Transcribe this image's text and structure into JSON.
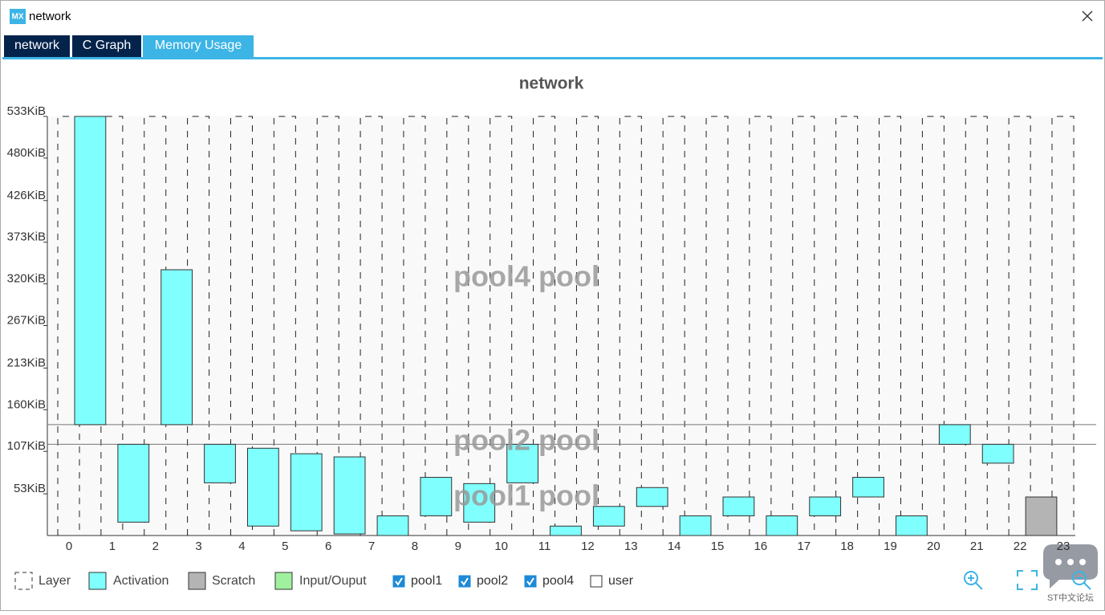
{
  "window": {
    "title": "network",
    "icon": "MX",
    "tabs": [
      "network",
      "C Graph",
      "Memory Usage"
    ],
    "active_tab": 2
  },
  "chart_data": {
    "type": "floating-bar",
    "title": "network",
    "ylim": [
      0,
      533
    ],
    "yticks": [
      {
        "value": 53,
        "label": "53KiB"
      },
      {
        "value": 107,
        "label": "107KiB"
      },
      {
        "value": 160,
        "label": "160KiB"
      },
      {
        "value": 213,
        "label": "213KiB"
      },
      {
        "value": 267,
        "label": "267KiB"
      },
      {
        "value": 320,
        "label": "320KiB"
      },
      {
        "value": 373,
        "label": "373KiB"
      },
      {
        "value": 426,
        "label": "426KiB"
      },
      {
        "value": 480,
        "label": "480KiB"
      },
      {
        "value": 533,
        "label": "533KiB"
      }
    ],
    "xlim": [
      0,
      23
    ],
    "xticks": [
      0,
      1,
      2,
      3,
      4,
      5,
      6,
      7,
      8,
      9,
      10,
      11,
      12,
      13,
      14,
      15,
      16,
      17,
      18,
      19,
      20,
      21,
      22,
      23
    ],
    "layer_legend": "Layer",
    "series": [
      {
        "name": "Activation",
        "color": "#80ffff",
        "layers": [
          0,
          1,
          2,
          3,
          4,
          5,
          6,
          7,
          8,
          9,
          10,
          11,
          12,
          13,
          14,
          15,
          16,
          17,
          18,
          19,
          20,
          21
        ],
        "low": [
          141,
          17,
          141,
          67,
          12,
          6,
          2,
          0,
          25,
          17,
          67,
          0,
          12,
          37,
          0,
          25,
          0,
          25,
          49,
          0,
          116,
          92
        ],
        "high": [
          533,
          116,
          338,
          116,
          111,
          104,
          100,
          25,
          74,
          66,
          116,
          12,
          37,
          61,
          25,
          49,
          25,
          49,
          74,
          25,
          141,
          116
        ]
      },
      {
        "name": "Scratch",
        "color": "#b4b4b4",
        "layers": [
          22
        ],
        "low": [
          0
        ],
        "high": [
          49
        ]
      },
      {
        "name": "Input/Ouput",
        "color": "#a0f0a0",
        "layers": [],
        "low": [],
        "high": []
      }
    ],
    "pools": [
      {
        "name": "pool1",
        "label": "pool1 pool",
        "checked": true,
        "low": 0,
        "high": 116
      },
      {
        "name": "pool2",
        "label": "pool2 pool",
        "checked": true,
        "low": 116,
        "high": 141
      },
      {
        "name": "pool4",
        "label": "pool4 pool",
        "checked": true,
        "low": 141,
        "high": 533
      },
      {
        "name": "user",
        "checked": false
      }
    ]
  },
  "watermark": "ST中文论坛"
}
